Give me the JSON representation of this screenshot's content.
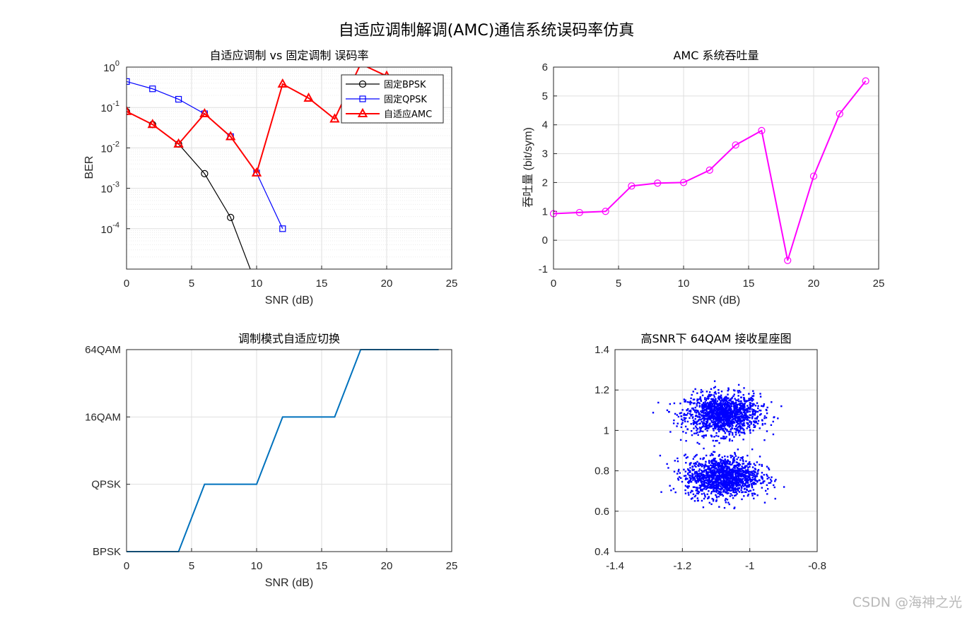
{
  "suptitle": "自适应调制解调(AMC)通信系统误码率仿真",
  "watermark": "CSDN @海神之光",
  "chart_data": [
    {
      "id": "ber",
      "type": "line",
      "title": "自适应调制 vs 固定调制 误码率",
      "xlabel": "SNR (dB)",
      "ylabel": "BER",
      "xlim": [
        0,
        25
      ],
      "ylim": [
        1e-05,
        1
      ],
      "yscale": "log",
      "grid": "on (with minor grid on y)",
      "legend_location": "top-right",
      "x_ticks": [
        0,
        5,
        10,
        15,
        20,
        25
      ],
      "y_ticks": [
        {
          "base": "10",
          "exp": "0"
        },
        {
          "base": "10",
          "exp": "-1"
        },
        {
          "base": "10",
          "exp": "-2"
        },
        {
          "base": "10",
          "exp": "-3"
        },
        {
          "base": "10",
          "exp": "-4"
        }
      ],
      "series": [
        {
          "name": "固定BPSK",
          "color": "#000000",
          "marker": "circle",
          "x": [
            0,
            2,
            4,
            6,
            8,
            10,
            12,
            14,
            16,
            18,
            20,
            22,
            24
          ],
          "y": [
            0.079,
            0.038,
            0.0125,
            0.0023,
            0.00019,
            3.9e-06,
            0,
            0,
            0,
            0,
            0,
            0,
            0
          ]
        },
        {
          "name": "固定QPSK",
          "color": "#0000ff",
          "marker": "square",
          "x": [
            0,
            2,
            4,
            6,
            8,
            10,
            12,
            14,
            16,
            18,
            20,
            22,
            24
          ],
          "y": [
            0.44,
            0.29,
            0.16,
            0.07,
            0.019,
            0.0024,
            0.0001,
            0,
            0,
            0,
            0,
            0,
            0
          ]
        },
        {
          "name": "自适应AMC",
          "color": "#ff0000",
          "marker": "triangle",
          "x": [
            0,
            2,
            4,
            6,
            8,
            10,
            12,
            14,
            16,
            18,
            20
          ],
          "y": [
            0.08,
            0.038,
            0.0125,
            0.07,
            0.019,
            0.0024,
            0.38,
            0.17,
            0.052,
            1.2,
            0.6
          ]
        }
      ]
    },
    {
      "id": "thr",
      "type": "line",
      "title": "AMC 系统吞吐量",
      "xlabel": "SNR (dB)",
      "ylabel": "吞吐量 (bit/sym)",
      "xlim": [
        0,
        25
      ],
      "ylim": [
        -1,
        6
      ],
      "grid": "on",
      "x_ticks": [
        0,
        5,
        10,
        15,
        20,
        25
      ],
      "y_ticks": [
        -1,
        0,
        1,
        2,
        3,
        4,
        5,
        6
      ],
      "series": [
        {
          "color": "#ff00ff",
          "marker": "circle",
          "x": [
            0,
            2,
            4,
            6,
            8,
            10,
            12,
            14,
            16,
            18,
            20,
            22,
            24
          ],
          "y": [
            0.92,
            0.96,
            1.0,
            1.88,
            1.98,
            2.0,
            2.43,
            3.3,
            3.8,
            -0.7,
            2.22,
            4.38,
            5.52
          ]
        }
      ]
    },
    {
      "id": "mod",
      "type": "line",
      "title": "调制模式自适应切换",
      "xlabel": "SNR (dB)",
      "xlim": [
        0,
        25
      ],
      "ylim": [
        1,
        4
      ],
      "grid": "on",
      "x_ticks": [
        0,
        5,
        10,
        15,
        20,
        25
      ],
      "y_tick_values": [
        1,
        2,
        3,
        4
      ],
      "y_tick_labels": [
        "BPSK",
        "QPSK",
        "16QAM",
        "64QAM"
      ],
      "series": [
        {
          "color": "#0072bd",
          "x": [
            0,
            2,
            4,
            6,
            8,
            10,
            12,
            14,
            16,
            18,
            20,
            22,
            24
          ],
          "y": [
            1,
            1,
            1,
            2,
            2,
            2,
            3,
            3,
            3,
            4,
            4,
            4,
            4
          ]
        }
      ]
    },
    {
      "id": "const",
      "type": "scatter",
      "title": "高SNR下 64QAM 接收星座图",
      "xlim": [
        -1.4,
        -0.8
      ],
      "ylim": [
        0.4,
        1.4
      ],
      "grid": "on",
      "x_ticks": [
        -1.4,
        -1.2,
        -1,
        -0.8
      ],
      "y_ticks": [
        0.4,
        0.6,
        0.8,
        1,
        1.2,
        1.4
      ],
      "color": "#0000ff",
      "clusters": [
        {
          "center_x": -1.08,
          "center_y": 1.08,
          "std": 0.05,
          "count": 1400
        },
        {
          "center_x": -1.08,
          "center_y": 0.77,
          "std": 0.05,
          "count": 1400
        }
      ]
    }
  ]
}
